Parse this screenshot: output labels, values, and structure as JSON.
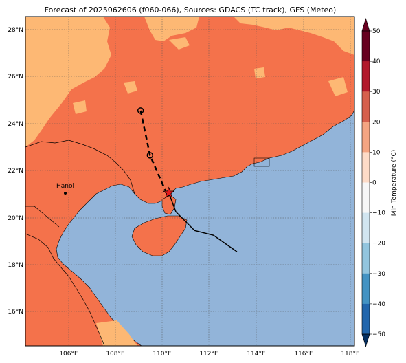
{
  "title": "Forecast of 2025062606 (f060-066), Sources: GDACS (TC track), GFS (Meteo)",
  "colorbar": {
    "label": "Min Temperature (°C)",
    "ticks": [
      "50",
      "40",
      "30",
      "20",
      "10",
      "0",
      "−10",
      "−20",
      "−30",
      "−40",
      "−50"
    ],
    "colors": [
      "#67001f",
      "#b2182b",
      "#d6604d",
      "#f4a582",
      "#fddbc7",
      "#f7f7f7",
      "#d1e5f0",
      "#92c5de",
      "#4393c3",
      "#2166ac",
      "#053061"
    ]
  },
  "map": {
    "lat_labels": [
      "28°N",
      "26°N",
      "24°N",
      "22°N",
      "20°N",
      "18°N",
      "16°N"
    ],
    "lon_labels": [
      "106°E",
      "108°E",
      "110°E",
      "112°E",
      "114°E",
      "116°E",
      "118°E"
    ],
    "colors": {
      "sea": "#92b4d9",
      "land_warm": "#f4724b",
      "land_mild": "#fdb874"
    }
  },
  "city": {
    "name": "Hanoi"
  },
  "track": {
    "forecast_dashed": [
      [
        109.1,
        24.5
      ],
      [
        109.5,
        22.6
      ],
      [
        110.2,
        21.0
      ]
    ],
    "past_solid": [
      [
        110.3,
        21.0
      ],
      [
        110.6,
        20.2
      ],
      [
        111.4,
        19.4
      ],
      [
        112.2,
        19.2
      ],
      [
        113.2,
        18.5
      ]
    ],
    "star": [
      110.3,
      21.0
    ]
  }
}
